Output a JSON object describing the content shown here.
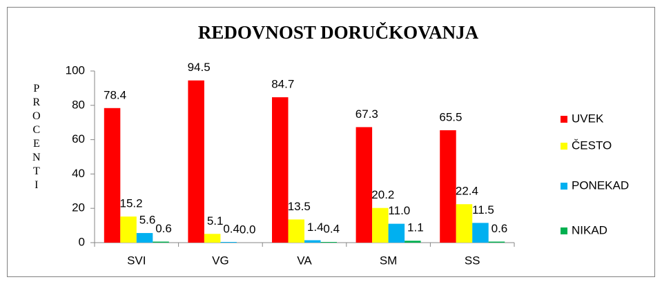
{
  "chart_data": {
    "type": "bar",
    "title": "REDOVNOST DORUČKOVANJA",
    "y_label": "PROCENTI",
    "categories": [
      "SVI",
      "VG",
      "VA",
      "SM",
      "SS"
    ],
    "series": [
      {
        "name": "UVEK",
        "color": "#ff0000",
        "values": [
          78.4,
          94.5,
          84.7,
          67.3,
          65.5
        ],
        "value_labels": [
          "78.4",
          "94.5",
          "84.7",
          "67.3",
          "65.5"
        ]
      },
      {
        "name": "ČESTO",
        "color": "#ffff00",
        "values": [
          15.2,
          5.1,
          13.5,
          20.2,
          22.4
        ],
        "value_labels": [
          "15.2",
          "5.1",
          "13.5",
          "20.2",
          "22.4"
        ]
      },
      {
        "name": "PONEKAD",
        "color": "#00b0f0",
        "values": [
          5.6,
          0.4,
          1.4,
          11.0,
          11.5
        ],
        "value_labels": [
          "5.6",
          "0.4",
          "1.4",
          "11.0",
          "11.5"
        ]
      },
      {
        "name": "NIKAD",
        "color": "#00b050",
        "values": [
          0.6,
          0.0,
          0.4,
          1.1,
          0.6
        ],
        "value_labels": [
          "0.6",
          "0.0",
          "0.4",
          "1.1",
          "0.6"
        ]
      }
    ],
    "ylim": [
      0,
      100
    ],
    "yticks": [
      0,
      20,
      40,
      60,
      80,
      100
    ],
    "legend": "right"
  }
}
